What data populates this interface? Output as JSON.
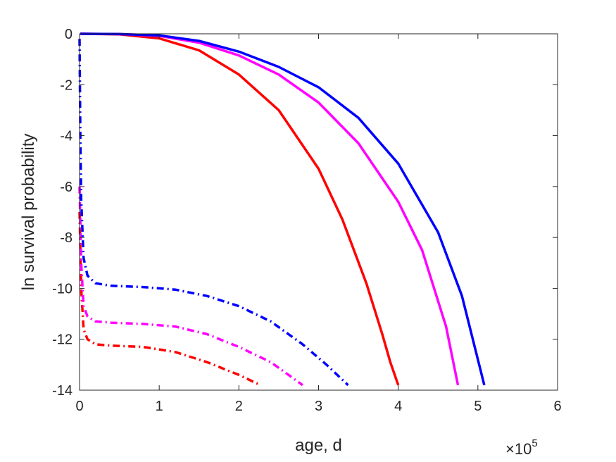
{
  "chart_data": {
    "type": "line",
    "xlabel": "age, d",
    "ylabel": "ln survival probability",
    "x_exponent_label": {
      "base": "×10",
      "exponent": "5"
    },
    "xlim": [
      0,
      6
    ],
    "ylim": [
      -14,
      0
    ],
    "xticks": [
      "0",
      "1",
      "2",
      "3",
      "4",
      "5",
      "6"
    ],
    "yticks": [
      "0",
      "-2",
      "-4",
      "-6",
      "-8",
      "-10",
      "-12",
      "-14"
    ],
    "grid": false,
    "box": true,
    "series": [
      {
        "color": "#ff0000",
        "style": "solid",
        "x": [
          0.01,
          0.5,
          1.0,
          1.5,
          2.0,
          2.5,
          3.0,
          3.3,
          3.6,
          3.8,
          3.9,
          4.0
        ],
        "y": [
          0.0,
          -0.02,
          -0.18,
          -0.65,
          -1.6,
          -3.0,
          -5.3,
          -7.3,
          -9.8,
          -11.8,
          -12.9,
          -13.8
        ]
      },
      {
        "color": "#ff00ff",
        "style": "solid",
        "x": [
          0.01,
          0.5,
          1.0,
          1.5,
          2.0,
          2.5,
          3.0,
          3.5,
          4.0,
          4.3,
          4.6,
          4.75
        ],
        "y": [
          0.0,
          -0.01,
          -0.08,
          -0.35,
          -0.85,
          -1.6,
          -2.7,
          -4.3,
          -6.6,
          -8.5,
          -11.5,
          -13.8
        ]
      },
      {
        "color": "#0000ff",
        "style": "solid",
        "x": [
          0.01,
          0.5,
          1.0,
          1.5,
          2.0,
          2.5,
          3.0,
          3.5,
          4.0,
          4.5,
          4.8,
          5.08
        ],
        "y": [
          0.0,
          -0.01,
          -0.06,
          -0.28,
          -0.7,
          -1.3,
          -2.1,
          -3.3,
          -5.1,
          -7.8,
          -10.3,
          -13.8
        ]
      },
      {
        "color": "#ff0000",
        "style": "dashdot",
        "x": [
          0.0,
          0.02,
          0.05,
          0.1,
          0.2,
          0.4,
          0.8,
          1.2,
          1.6,
          2.0,
          2.27
        ],
        "y": [
          -7.0,
          -10.0,
          -11.6,
          -12.0,
          -12.2,
          -12.25,
          -12.3,
          -12.5,
          -12.9,
          -13.4,
          -13.8
        ]
      },
      {
        "color": "#ff00ff",
        "style": "dashdot",
        "x": [
          0.0,
          0.02,
          0.05,
          0.1,
          0.2,
          0.4,
          0.8,
          1.2,
          1.6,
          2.0,
          2.4,
          2.8
        ],
        "y": [
          -6.0,
          -9.0,
          -10.7,
          -11.1,
          -11.3,
          -11.35,
          -11.4,
          -11.5,
          -11.8,
          -12.3,
          -12.9,
          -13.8
        ]
      },
      {
        "color": "#0000ff",
        "style": "dashdot",
        "x": [
          0.0,
          0.01,
          0.02,
          0.05,
          0.1,
          0.2,
          0.4,
          0.8,
          1.2,
          1.6,
          2.0,
          2.4,
          2.8,
          3.1,
          3.37
        ],
        "y": [
          -0.2,
          -4.0,
          -6.5,
          -8.8,
          -9.5,
          -9.8,
          -9.9,
          -9.95,
          -10.05,
          -10.3,
          -10.7,
          -11.3,
          -12.2,
          -13.0,
          -13.8
        ]
      }
    ]
  }
}
